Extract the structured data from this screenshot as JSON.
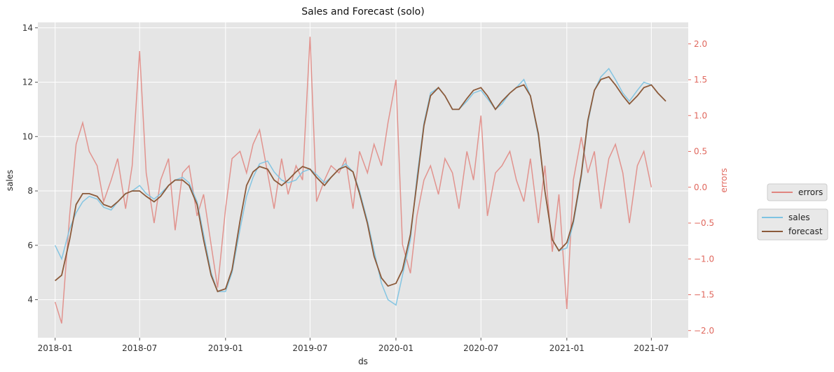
{
  "chart_data": {
    "type": "line",
    "title": "Sales and Forecast (solo)",
    "xlabel": "ds",
    "ylabel": "sales",
    "y2label": "errors",
    "x_ticks": [
      "2018-01",
      "2018-07",
      "2019-01",
      "2019-07",
      "2020-01",
      "2020-07",
      "2021-01",
      "2021-07"
    ],
    "y_ticks": [
      "4",
      "6",
      "8",
      "10",
      "12",
      "14"
    ],
    "y2_ticks": [
      "−2.0",
      "−1.5",
      "−1.0",
      "−0.5",
      "0.0",
      "0.5",
      "1.0",
      "1.5",
      "2.0"
    ],
    "xlim": [
      "2017-11-25",
      "2021-09-18"
    ],
    "ylim": [
      2.6,
      14.2
    ],
    "y2lim": [
      -2.1,
      2.3
    ],
    "grid": true,
    "legend_placement": "right, outside plot",
    "colors": {
      "sales": "#7ec3e2",
      "forecast": "#8b5a3a",
      "errors": "#e0857f",
      "background": "#e5e5e5",
      "right_axis": "#e0685e"
    },
    "series": [
      {
        "name": "sales",
        "axis": "left",
        "x": [
          "2018-01-01",
          "2018-01-15",
          "2018-02-01",
          "2018-02-15",
          "2018-03-01",
          "2018-03-15",
          "2018-04-01",
          "2018-04-15",
          "2018-05-01",
          "2018-05-15",
          "2018-06-01",
          "2018-06-15",
          "2018-07-01",
          "2018-07-15",
          "2018-08-01",
          "2018-08-15",
          "2018-09-01",
          "2018-09-15",
          "2018-10-01",
          "2018-10-15",
          "2018-11-01",
          "2018-11-15",
          "2018-12-01",
          "2018-12-15",
          "2019-01-01",
          "2019-01-15",
          "2019-02-01",
          "2019-02-15",
          "2019-03-01",
          "2019-03-15",
          "2019-04-01",
          "2019-04-15",
          "2019-05-01",
          "2019-05-15",
          "2019-06-01",
          "2019-06-15",
          "2019-07-01",
          "2019-07-15",
          "2019-08-01",
          "2019-08-15",
          "2019-09-01",
          "2019-09-15",
          "2019-10-01",
          "2019-10-15",
          "2019-11-01",
          "2019-11-15",
          "2019-12-01",
          "2019-12-15",
          "2020-01-01",
          "2020-01-15",
          "2020-02-01",
          "2020-02-15",
          "2020-03-01",
          "2020-03-15",
          "2020-04-01",
          "2020-04-15",
          "2020-05-01",
          "2020-05-15",
          "2020-06-01",
          "2020-06-15",
          "2020-07-01",
          "2020-07-15",
          "2020-08-01",
          "2020-08-15",
          "2020-09-01",
          "2020-09-15",
          "2020-10-01",
          "2020-10-15",
          "2020-11-01",
          "2020-11-15",
          "2020-12-01",
          "2020-12-15",
          "2021-01-01",
          "2021-01-15",
          "2021-02-01",
          "2021-02-15",
          "2021-03-01",
          "2021-03-15",
          "2021-04-01",
          "2021-04-15",
          "2021-05-01",
          "2021-05-15",
          "2021-06-01",
          "2021-06-15",
          "2021-07-01"
        ],
        "values": [
          6.0,
          5.5,
          6.6,
          7.2,
          7.6,
          7.8,
          7.7,
          7.4,
          7.3,
          7.6,
          7.9,
          8.0,
          8.2,
          7.9,
          7.7,
          7.9,
          8.2,
          8.4,
          8.5,
          8.3,
          7.6,
          6.4,
          5.0,
          4.3,
          4.3,
          5.0,
          6.6,
          7.8,
          8.5,
          9.0,
          9.1,
          8.7,
          8.4,
          8.3,
          8.4,
          8.7,
          8.8,
          8.6,
          8.3,
          8.5,
          8.8,
          9.0,
          8.7,
          8.0,
          6.9,
          5.8,
          4.6,
          4.0,
          3.8,
          4.9,
          6.2,
          8.5,
          10.5,
          11.6,
          11.8,
          11.5,
          11.0,
          11.0,
          11.3,
          11.6,
          11.7,
          11.4,
          11.0,
          11.2,
          11.6,
          11.8,
          12.1,
          11.5,
          10.0,
          8.0,
          6.2,
          5.8,
          5.9,
          6.8,
          8.5,
          10.5,
          11.7,
          12.2,
          12.5,
          12.1,
          11.6,
          11.3,
          11.7,
          12.0,
          11.9
        ]
      },
      {
        "name": "forecast",
        "axis": "left",
        "x": [
          "2018-01-01",
          "2018-01-15",
          "2018-02-01",
          "2018-02-15",
          "2018-03-01",
          "2018-03-15",
          "2018-04-01",
          "2018-04-15",
          "2018-05-01",
          "2018-05-15",
          "2018-06-01",
          "2018-06-15",
          "2018-07-01",
          "2018-07-15",
          "2018-08-01",
          "2018-08-15",
          "2018-09-01",
          "2018-09-15",
          "2018-10-01",
          "2018-10-15",
          "2018-11-01",
          "2018-11-15",
          "2018-12-01",
          "2018-12-15",
          "2019-01-01",
          "2019-01-15",
          "2019-02-01",
          "2019-02-15",
          "2019-03-01",
          "2019-03-15",
          "2019-04-01",
          "2019-04-15",
          "2019-05-01",
          "2019-05-15",
          "2019-06-01",
          "2019-06-15",
          "2019-07-01",
          "2019-07-15",
          "2019-08-01",
          "2019-08-15",
          "2019-09-01",
          "2019-09-15",
          "2019-10-01",
          "2019-10-15",
          "2019-11-01",
          "2019-11-15",
          "2019-12-01",
          "2019-12-15",
          "2020-01-01",
          "2020-01-15",
          "2020-02-01",
          "2020-02-15",
          "2020-03-01",
          "2020-03-15",
          "2020-04-01",
          "2020-04-15",
          "2020-05-01",
          "2020-05-15",
          "2020-06-01",
          "2020-06-15",
          "2020-07-01",
          "2020-07-15",
          "2020-08-01",
          "2020-08-15",
          "2020-09-01",
          "2020-09-15",
          "2020-10-01",
          "2020-10-15",
          "2020-11-01",
          "2020-11-15",
          "2020-12-01",
          "2020-12-15",
          "2021-01-01",
          "2021-01-15",
          "2021-02-01",
          "2021-02-15",
          "2021-03-01",
          "2021-03-15",
          "2021-04-01",
          "2021-04-15",
          "2021-05-01",
          "2021-05-15",
          "2021-06-01",
          "2021-06-15",
          "2021-07-01",
          "2021-07-15",
          "2021-08-01"
        ],
        "values": [
          4.7,
          4.9,
          6.2,
          7.5,
          7.9,
          7.9,
          7.8,
          7.5,
          7.4,
          7.6,
          7.9,
          8.0,
          8.0,
          7.8,
          7.6,
          7.8,
          8.2,
          8.4,
          8.4,
          8.2,
          7.5,
          6.2,
          4.9,
          4.3,
          4.4,
          5.1,
          6.9,
          8.2,
          8.7,
          8.9,
          8.8,
          8.4,
          8.2,
          8.4,
          8.7,
          8.9,
          8.8,
          8.5,
          8.2,
          8.5,
          8.8,
          8.9,
          8.7,
          7.9,
          6.8,
          5.6,
          4.8,
          4.5,
          4.6,
          5.1,
          6.4,
          8.3,
          10.4,
          11.5,
          11.8,
          11.5,
          11.0,
          11.0,
          11.4,
          11.7,
          11.8,
          11.5,
          11.0,
          11.3,
          11.6,
          11.8,
          11.9,
          11.5,
          10.1,
          8.0,
          6.2,
          5.8,
          6.1,
          6.9,
          8.6,
          10.6,
          11.7,
          12.1,
          12.2,
          11.9,
          11.5,
          11.2,
          11.5,
          11.8,
          11.9,
          11.6,
          11.3
        ]
      },
      {
        "name": "errors",
        "axis": "right",
        "x": [
          "2018-01-01",
          "2018-01-15",
          "2018-02-01",
          "2018-02-15",
          "2018-03-01",
          "2018-03-15",
          "2018-04-01",
          "2018-04-15",
          "2018-05-01",
          "2018-05-15",
          "2018-06-01",
          "2018-06-15",
          "2018-07-01",
          "2018-07-15",
          "2018-08-01",
          "2018-08-15",
          "2018-09-01",
          "2018-09-15",
          "2018-10-01",
          "2018-10-15",
          "2018-11-01",
          "2018-11-15",
          "2018-12-01",
          "2018-12-15",
          "2019-01-01",
          "2019-01-15",
          "2019-02-01",
          "2019-02-15",
          "2019-03-01",
          "2019-03-15",
          "2019-04-01",
          "2019-04-15",
          "2019-05-01",
          "2019-05-15",
          "2019-06-01",
          "2019-06-15",
          "2019-07-01",
          "2019-07-15",
          "2019-08-01",
          "2019-08-15",
          "2019-09-01",
          "2019-09-15",
          "2019-10-01",
          "2019-10-15",
          "2019-11-01",
          "2019-11-15",
          "2019-12-01",
          "2019-12-15",
          "2020-01-01",
          "2020-01-15",
          "2020-02-01",
          "2020-02-15",
          "2020-03-01",
          "2020-03-15",
          "2020-04-01",
          "2020-04-15",
          "2020-05-01",
          "2020-05-15",
          "2020-06-01",
          "2020-06-15",
          "2020-07-01",
          "2020-07-15",
          "2020-08-01",
          "2020-08-15",
          "2020-09-01",
          "2020-09-15",
          "2020-10-01",
          "2020-10-15",
          "2020-11-01",
          "2020-11-15",
          "2020-12-01",
          "2020-12-15",
          "2021-01-01",
          "2021-01-15",
          "2021-02-01",
          "2021-02-15",
          "2021-03-01",
          "2021-03-15",
          "2021-04-01",
          "2021-04-15",
          "2021-05-01",
          "2021-05-15",
          "2021-06-01",
          "2021-06-15",
          "2021-07-01"
        ],
        "values": [
          -1.6,
          -1.9,
          -0.4,
          0.6,
          0.9,
          0.5,
          0.3,
          -0.2,
          0.1,
          0.4,
          -0.3,
          0.3,
          1.9,
          0.2,
          -0.5,
          0.1,
          0.4,
          -0.6,
          0.2,
          0.3,
          -0.4,
          -0.1,
          -0.8,
          -1.4,
          -0.3,
          0.4,
          0.5,
          0.2,
          0.6,
          0.8,
          0.2,
          -0.3,
          0.4,
          -0.1,
          0.3,
          0.1,
          2.1,
          -0.2,
          0.1,
          0.3,
          0.2,
          0.4,
          -0.3,
          0.5,
          0.2,
          0.6,
          0.3,
          0.9,
          1.5,
          -0.8,
          -1.2,
          -0.4,
          0.1,
          0.3,
          -0.1,
          0.4,
          0.2,
          -0.3,
          0.5,
          0.1,
          1.0,
          -0.4,
          0.2,
          0.3,
          0.5,
          0.1,
          -0.2,
          0.4,
          -0.5,
          0.3,
          -0.9,
          -0.1,
          -1.7,
          0.1,
          0.7,
          0.2,
          0.5,
          -0.3,
          0.4,
          0.6,
          0.2,
          -0.5,
          0.3,
          0.5,
          0.0
        ]
      }
    ]
  }
}
